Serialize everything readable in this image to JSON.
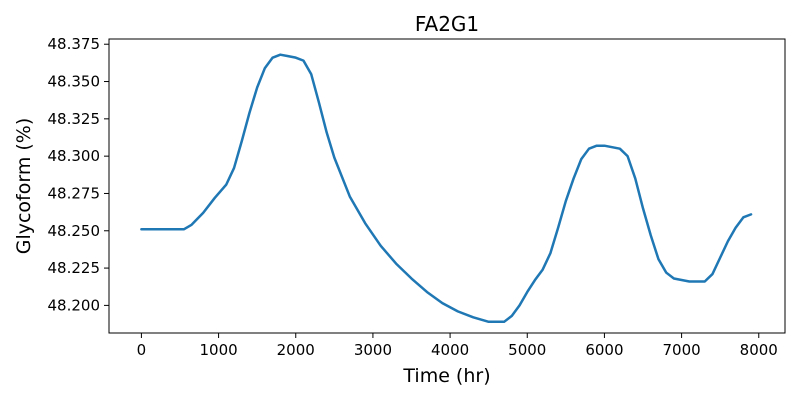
{
  "chart_data": {
    "type": "line",
    "title": "FA2G1",
    "xlabel": "Time (hr)",
    "ylabel": "Glycoform (%)",
    "xlim": [
      -420,
      8340
    ],
    "ylim": [
      48.1815,
      48.3785
    ],
    "xticks": [
      0,
      1000,
      2000,
      3000,
      4000,
      5000,
      6000,
      7000,
      8000
    ],
    "xtick_labels": [
      "0",
      "1000",
      "2000",
      "3000",
      "4000",
      "5000",
      "6000",
      "7000",
      "8000"
    ],
    "yticks": [
      48.2,
      48.225,
      48.25,
      48.275,
      48.3,
      48.325,
      48.35,
      48.375
    ],
    "ytick_labels": [
      "48.200",
      "48.225",
      "48.250",
      "48.275",
      "48.300",
      "48.325",
      "48.350",
      "48.375"
    ],
    "grid": false,
    "line_color": "#1f77b4",
    "series": [
      {
        "x": [
          0,
          300,
          550,
          650,
          800,
          950,
          1100,
          1200,
          1300,
          1400,
          1500,
          1600,
          1700,
          1800,
          1900,
          2000,
          2100,
          2200,
          2300,
          2400,
          2500,
          2700,
          2900,
          3100,
          3300,
          3500,
          3700,
          3900,
          4100,
          4300,
          4500,
          4700,
          4800,
          4900,
          5000,
          5100,
          5200,
          5300,
          5400,
          5500,
          5600,
          5700,
          5800,
          5900,
          6000,
          6100,
          6200,
          6300,
          6400,
          6500,
          6600,
          6700,
          6800,
          6900,
          7000,
          7100,
          7200,
          7300,
          7400,
          7500,
          7600,
          7700,
          7800,
          7900
        ],
        "y": [
          48.251,
          48.251,
          48.251,
          48.254,
          48.262,
          48.272,
          48.281,
          48.292,
          48.31,
          48.329,
          48.346,
          48.359,
          48.366,
          48.368,
          48.367,
          48.366,
          48.364,
          48.355,
          48.336,
          48.316,
          48.299,
          48.273,
          48.255,
          48.24,
          48.228,
          48.218,
          48.209,
          48.2015,
          48.196,
          48.192,
          48.189,
          48.189,
          48.193,
          48.2,
          48.209,
          48.217,
          48.224,
          48.235,
          48.252,
          48.27,
          48.285,
          48.298,
          48.305,
          48.307,
          48.307,
          48.306,
          48.305,
          48.3,
          48.285,
          48.265,
          48.247,
          48.231,
          48.222,
          48.218,
          48.217,
          48.216,
          48.216,
          48.216,
          48.221,
          48.232,
          48.243,
          48.252,
          48.259,
          48.261
        ]
      }
    ]
  }
}
